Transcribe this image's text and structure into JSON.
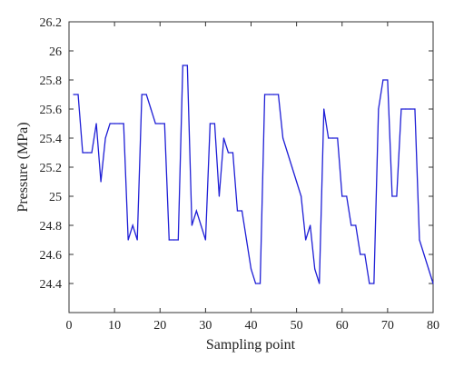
{
  "chart_data": {
    "type": "line",
    "title": "",
    "xlabel": "Sampling point",
    "ylabel": "Pressure (MPa)",
    "xlim": [
      0,
      80
    ],
    "ylim": [
      24.2,
      26.2
    ],
    "xticks": [
      0,
      10,
      20,
      30,
      40,
      50,
      60,
      70,
      80
    ],
    "yticks": [
      24.4,
      24.6,
      24.8,
      25,
      25.2,
      25.4,
      25.6,
      25.8,
      26,
      26.2
    ],
    "ytick_labels": [
      "24.4",
      "24.6",
      "24.8",
      "25",
      "25.2",
      "25.4",
      "25.6",
      "25.8",
      "26",
      "26.2"
    ],
    "grid": false,
    "legend": false,
    "series": [
      {
        "color": "#1f1fd6",
        "x": [
          1,
          2,
          3,
          4,
          5,
          6,
          7,
          8,
          9,
          10,
          11,
          12,
          13,
          14,
          15,
          16,
          17,
          18,
          19,
          20,
          21,
          22,
          23,
          24,
          25,
          26,
          27,
          28,
          29,
          30,
          31,
          32,
          33,
          34,
          35,
          36,
          37,
          38,
          39,
          40,
          41,
          42,
          43,
          44,
          45,
          46,
          47,
          48,
          49,
          50,
          51,
          52,
          53,
          54,
          55,
          56,
          57,
          58,
          59,
          60,
          61,
          62,
          63,
          64,
          65,
          66,
          67,
          68,
          69,
          70,
          71,
          72,
          73,
          74,
          75,
          76,
          77,
          78,
          79,
          80
        ],
        "y": [
          25.7,
          25.7,
          25.3,
          25.3,
          25.3,
          25.5,
          25.1,
          25.4,
          25.5,
          25.5,
          25.5,
          25.5,
          24.7,
          24.8,
          24.7,
          25.7,
          25.7,
          25.6,
          25.5,
          25.5,
          25.5,
          24.7,
          24.7,
          24.7,
          25.9,
          25.9,
          24.8,
          24.9,
          24.8,
          24.7,
          25.5,
          25.5,
          25.0,
          25.4,
          25.3,
          25.3,
          24.9,
          24.9,
          24.7,
          24.5,
          24.4,
          24.4,
          25.7,
          25.7,
          25.7,
          25.7,
          25.4,
          25.3,
          25.2,
          25.1,
          25.0,
          24.7,
          24.8,
          24.5,
          24.4,
          25.6,
          25.4,
          25.4,
          25.4,
          25.0,
          25.0,
          24.8,
          24.8,
          24.6,
          24.6,
          24.4,
          24.4,
          25.6,
          25.8,
          25.8,
          25.0,
          25.0,
          25.6,
          25.6,
          25.6,
          25.6,
          24.7,
          24.6,
          24.5,
          24.4
        ]
      }
    ]
  }
}
